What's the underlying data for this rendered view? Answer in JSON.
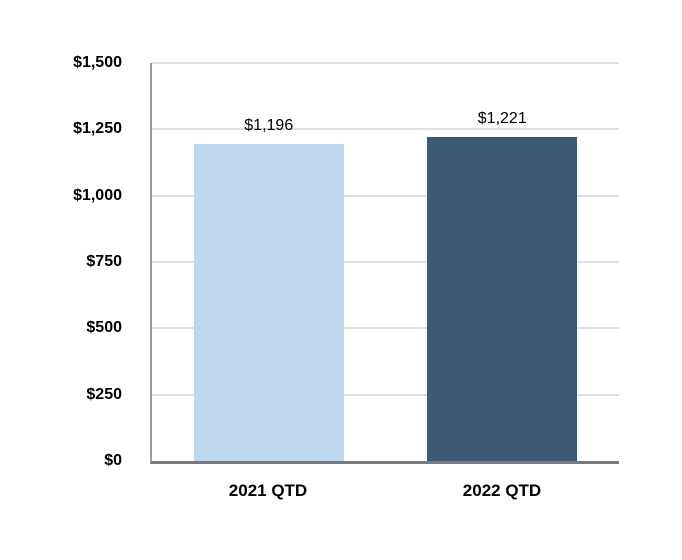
{
  "chart_data": {
    "type": "bar",
    "categories": [
      "2021 QTD",
      "2022 QTD"
    ],
    "values": [
      1196,
      1221
    ],
    "value_labels": [
      "$1,196",
      "$1,221"
    ],
    "bar_colors": [
      "#BDD7EE",
      "#3C5A75"
    ],
    "title": "",
    "xlabel": "",
    "ylabel": "",
    "ylim": [
      0,
      1500
    ],
    "ytick_interval": 250,
    "yticks": [
      "$0",
      "$250",
      "$500",
      "$750",
      "$1,000",
      "$1,250",
      "$1,500"
    ],
    "grid": "horizontal gridlines on, vertical off",
    "legend": "none"
  },
  "colors": {
    "background": "#FFFFFF",
    "gridline": "#DFDFDF",
    "axis-left": "#9A9A9A",
    "axis-bottom": "#7A7A7A",
    "text": "#000000"
  }
}
